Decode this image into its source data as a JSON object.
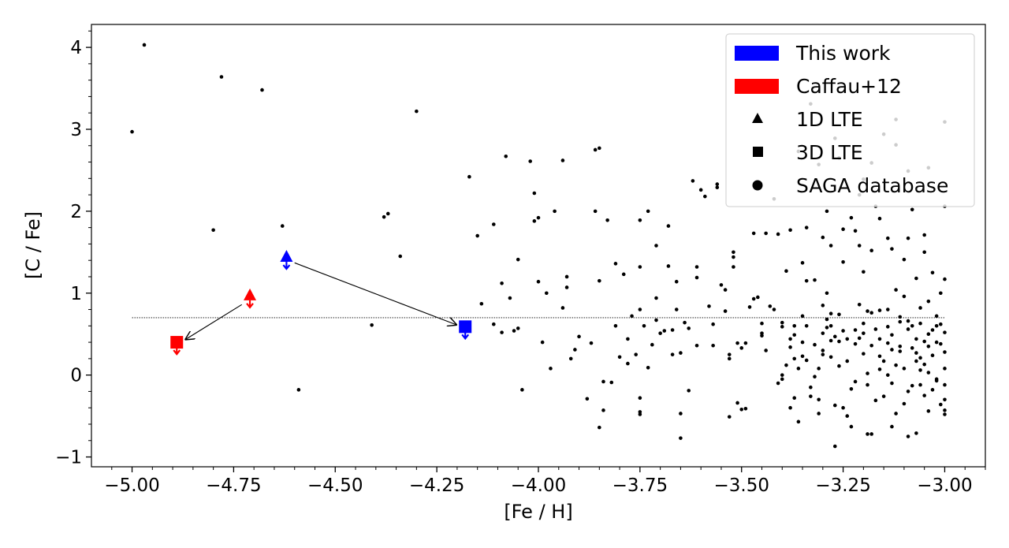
{
  "chart_data": {
    "type": "scatter",
    "xlabel": "[Fe / H]",
    "ylabel": "[C / Fe]",
    "xlim": [
      -5.1,
      -2.9
    ],
    "ylim": [
      -1.12,
      4.28
    ],
    "xticks": [
      -5.0,
      -4.75,
      -4.5,
      -4.25,
      -4.0,
      -3.75,
      -3.5,
      -3.25,
      -3.0
    ],
    "xtick_labels": [
      "−5.00",
      "−4.75",
      "−4.50",
      "−4.25",
      "−4.00",
      "−3.75",
      "−3.50",
      "−3.25",
      "−3.00"
    ],
    "yticks": [
      -1,
      0,
      1,
      2,
      3,
      4
    ],
    "ytick_labels": [
      "−1",
      "0",
      "1",
      "2",
      "3",
      "4"
    ],
    "grid": false,
    "reference_line": {
      "y": 0.7,
      "x_range": [
        -5.0,
        -3.0
      ],
      "style": "dotted"
    },
    "legend": {
      "placement": "top-right",
      "entries": [
        {
          "label": "This work",
          "marker": "patch",
          "color": "#0000ff"
        },
        {
          "label": "Caffau+12",
          "marker": "patch",
          "color": "#ff0000"
        },
        {
          "label": "1D LTE",
          "marker": "triangle",
          "color": "#000000"
        },
        {
          "label": "3D LTE",
          "marker": "square",
          "color": "#000000"
        },
        {
          "label": "SAGA database",
          "marker": "circle",
          "color": "#000000"
        }
      ]
    },
    "highlighted": [
      {
        "series": "This work",
        "method": "1D LTE",
        "x": -4.62,
        "y": 1.44,
        "color": "#0000ff",
        "upper_limit": true
      },
      {
        "series": "This work",
        "method": "3D LTE",
        "x": -4.18,
        "y": 0.59,
        "color": "#0000ff",
        "upper_limit": true
      },
      {
        "series": "Caffau+12",
        "method": "1D LTE",
        "x": -4.71,
        "y": 0.97,
        "color": "#ff0000",
        "upper_limit": true
      },
      {
        "series": "Caffau+12",
        "method": "3D LTE",
        "x": -4.89,
        "y": 0.4,
        "color": "#ff0000",
        "upper_limit": true
      }
    ],
    "arrows": [
      {
        "from": [
          -4.6,
          1.37
        ],
        "to": [
          -4.2,
          0.61
        ]
      },
      {
        "from": [
          -4.73,
          0.86
        ],
        "to": [
          -4.87,
          0.43
        ]
      }
    ],
    "saga_points": [
      [
        -5.0,
        2.97
      ],
      [
        -4.97,
        4.03
      ],
      [
        -4.78,
        3.64
      ],
      [
        -4.68,
        3.48
      ],
      [
        -4.3,
        3.22
      ],
      [
        -4.8,
        1.77
      ],
      [
        -4.63,
        1.82
      ],
      [
        -4.38,
        1.93
      ],
      [
        -4.37,
        1.97
      ],
      [
        -4.34,
        1.45
      ],
      [
        -4.41,
        0.61
      ],
      [
        -4.59,
        -0.18
      ],
      [
        -4.17,
        2.42
      ],
      [
        -4.15,
        1.7
      ],
      [
        -4.14,
        0.87
      ],
      [
        -4.11,
        0.62
      ],
      [
        -4.11,
        1.84
      ],
      [
        -4.09,
        1.12
      ],
      [
        -4.09,
        0.52
      ],
      [
        -4.08,
        2.67
      ],
      [
        -4.07,
        0.94
      ],
      [
        -4.06,
        0.54
      ],
      [
        -4.05,
        1.41
      ],
      [
        -4.05,
        0.57
      ],
      [
        -4.04,
        -0.18
      ],
      [
        -4.02,
        2.61
      ],
      [
        -4.01,
        2.22
      ],
      [
        -4.01,
        1.88
      ],
      [
        -4.0,
        1.92
      ],
      [
        -4.0,
        1.14
      ],
      [
        -3.99,
        0.4
      ],
      [
        -3.98,
        1.0
      ],
      [
        -3.97,
        0.08
      ],
      [
        -3.96,
        2.0
      ],
      [
        -3.94,
        2.62
      ],
      [
        -3.94,
        0.82
      ],
      [
        -3.93,
        1.2
      ],
      [
        -3.93,
        1.07
      ],
      [
        -3.92,
        0.2
      ],
      [
        -3.91,
        0.31
      ],
      [
        -3.9,
        0.47
      ],
      [
        -3.88,
        -0.29
      ],
      [
        -3.87,
        0.39
      ],
      [
        -3.86,
        2.75
      ],
      [
        -3.86,
        2.0
      ],
      [
        -3.85,
        2.77
      ],
      [
        -3.85,
        1.15
      ],
      [
        -3.85,
        -0.64
      ],
      [
        -3.84,
        -0.08
      ],
      [
        -3.84,
        -0.43
      ],
      [
        -3.83,
        1.89
      ],
      [
        -3.82,
        -0.09
      ],
      [
        -3.81,
        1.36
      ],
      [
        -3.81,
        0.6
      ],
      [
        -3.8,
        0.22
      ],
      [
        -3.79,
        1.23
      ],
      [
        -3.78,
        0.44
      ],
      [
        -3.78,
        0.14
      ],
      [
        -3.77,
        0.72
      ],
      [
        -3.76,
        0.25
      ],
      [
        -3.75,
        1.89
      ],
      [
        -3.75,
        1.32
      ],
      [
        -3.75,
        0.8
      ],
      [
        -3.75,
        -0.28
      ],
      [
        -3.75,
        -0.45
      ],
      [
        -3.75,
        -0.48
      ],
      [
        -3.74,
        0.6
      ],
      [
        -3.73,
        2.0
      ],
      [
        -3.73,
        0.09
      ],
      [
        -3.72,
        0.37
      ],
      [
        -3.71,
        1.58
      ],
      [
        -3.71,
        0.94
      ],
      [
        -3.71,
        0.67
      ],
      [
        -3.7,
        0.51
      ],
      [
        -3.69,
        0.54
      ],
      [
        -3.68,
        1.82
      ],
      [
        -3.68,
        1.33
      ],
      [
        -3.67,
        0.55
      ],
      [
        -3.67,
        0.25
      ],
      [
        -3.66,
        1.14
      ],
      [
        -3.66,
        0.8
      ],
      [
        -3.65,
        0.27
      ],
      [
        -3.65,
        -0.47
      ],
      [
        -3.65,
        -0.77
      ],
      [
        -3.64,
        0.64
      ],
      [
        -3.63,
        0.57
      ],
      [
        -3.63,
        -0.19
      ],
      [
        -3.62,
        2.37
      ],
      [
        -3.61,
        1.32
      ],
      [
        -3.61,
        1.19
      ],
      [
        -3.61,
        0.36
      ],
      [
        -3.6,
        2.26
      ],
      [
        -3.59,
        2.18
      ],
      [
        -3.58,
        0.84
      ],
      [
        -3.57,
        0.62
      ],
      [
        -3.57,
        0.36
      ],
      [
        -3.56,
        2.33
      ],
      [
        -3.56,
        2.29
      ],
      [
        -3.55,
        1.1
      ],
      [
        -3.54,
        1.04
      ],
      [
        -3.54,
        0.78
      ],
      [
        -3.53,
        0.25
      ],
      [
        -3.53,
        0.2
      ],
      [
        -3.53,
        -0.51
      ],
      [
        -3.52,
        1.5
      ],
      [
        -3.52,
        1.44
      ],
      [
        -3.52,
        1.32
      ],
      [
        -3.51,
        0.39
      ],
      [
        -3.51,
        -0.34
      ],
      [
        -3.5,
        0.33
      ],
      [
        -3.5,
        -0.42
      ],
      [
        -3.49,
        0.39
      ],
      [
        -3.49,
        -0.41
      ],
      [
        -3.48,
        0.83
      ],
      [
        -3.47,
        1.73
      ],
      [
        -3.47,
        0.93
      ],
      [
        -3.46,
        0.95
      ],
      [
        -3.45,
        0.51
      ],
      [
        -3.44,
        1.73
      ],
      [
        -3.43,
        0.84
      ],
      [
        -3.42,
        0.8
      ],
      [
        -3.41,
        1.72
      ],
      [
        -3.4,
        0.64
      ],
      [
        -3.4,
        0.59
      ],
      [
        -3.4,
        0.0
      ],
      [
        -3.39,
        1.27
      ],
      [
        -3.38,
        0.44
      ],
      [
        -3.38,
        0.34
      ],
      [
        -3.37,
        0.49
      ],
      [
        -3.37,
        0.2
      ],
      [
        -3.36,
        0.08
      ],
      [
        -3.36,
        -0.57
      ],
      [
        -3.35,
        1.37
      ],
      [
        -3.35,
        0.72
      ],
      [
        -3.34,
        0.18
      ],
      [
        -3.33,
        -0.26
      ],
      [
        -3.32,
        1.16
      ],
      [
        -3.32,
        0.37
      ],
      [
        -3.31,
        0.08
      ],
      [
        -3.31,
        -0.3
      ],
      [
        -3.3,
        0.51
      ],
      [
        -3.3,
        0.3
      ],
      [
        -3.29,
        1.0
      ],
      [
        -3.29,
        0.68
      ],
      [
        -3.28,
        0.75
      ],
      [
        -3.28,
        0.42
      ],
      [
        -3.28,
        0.22
      ],
      [
        -3.27,
        -0.37
      ],
      [
        -3.27,
        -0.87
      ],
      [
        -3.26,
        0.74
      ],
      [
        -3.26,
        0.11
      ],
      [
        -3.25,
        1.78
      ],
      [
        -3.25,
        1.38
      ],
      [
        -3.25,
        0.54
      ],
      [
        -3.24,
        0.17
      ],
      [
        -3.24,
        -0.5
      ],
      [
        -3.23,
        -0.63
      ],
      [
        -3.22,
        1.76
      ],
      [
        -3.22,
        0.55
      ],
      [
        -3.22,
        -0.08
      ],
      [
        -3.21,
        1.58
      ],
      [
        -3.21,
        0.86
      ],
      [
        -3.2,
        1.26
      ],
      [
        -3.2,
        0.63
      ],
      [
        -3.2,
        0.26
      ],
      [
        -3.19,
        0.02
      ],
      [
        -3.19,
        -0.12
      ],
      [
        -3.18,
        1.52
      ],
      [
        -3.18,
        0.76
      ],
      [
        -3.18,
        0.36
      ],
      [
        -3.17,
        0.56
      ],
      [
        -3.17,
        -0.31
      ],
      [
        -3.16,
        1.91
      ],
      [
        -3.16,
        0.79
      ],
      [
        -3.16,
        0.44
      ],
      [
        -3.15,
        0.17
      ],
      [
        -3.15,
        -0.26
      ],
      [
        -3.14,
        1.67
      ],
      [
        -3.14,
        0.59
      ],
      [
        -3.14,
        0.0
      ],
      [
        -3.13,
        1.54
      ],
      [
        -3.13,
        0.49
      ],
      [
        -3.13,
        0.31
      ],
      [
        -3.12,
        1.04
      ],
      [
        -3.12,
        -0.47
      ],
      [
        -3.11,
        0.71
      ],
      [
        -3.11,
        0.35
      ],
      [
        -3.1,
        1.41
      ],
      [
        -3.1,
        0.96
      ],
      [
        -3.1,
        0.08
      ],
      [
        -3.09,
        1.67
      ],
      [
        -3.09,
        0.66
      ],
      [
        -3.09,
        0.56
      ],
      [
        -3.08,
        0.33
      ],
      [
        -3.08,
        -0.13
      ],
      [
        -3.07,
        1.18
      ],
      [
        -3.07,
        0.44
      ],
      [
        -3.07,
        -0.71
      ],
      [
        -3.06,
        0.82
      ],
      [
        -3.06,
        0.63
      ],
      [
        -3.06,
        0.21
      ],
      [
        -3.05,
        1.71
      ],
      [
        -3.05,
        1.5
      ],
      [
        -3.05,
        0.41
      ],
      [
        -3.05,
        -0.25
      ],
      [
        -3.04,
        0.9
      ],
      [
        -3.04,
        0.5
      ],
      [
        -3.04,
        0.03
      ],
      [
        -3.03,
        1.25
      ],
      [
        -3.03,
        0.24
      ],
      [
        -3.03,
        -0.18
      ],
      [
        -3.02,
        0.72
      ],
      [
        -3.02,
        0.4
      ],
      [
        -3.02,
        -0.07
      ],
      [
        -3.01,
        1.0
      ],
      [
        -3.01,
        0.62
      ],
      [
        -3.01,
        0.38
      ],
      [
        -3.01,
        -0.36
      ],
      [
        -3.0,
        1.17
      ],
      [
        -3.0,
        0.52
      ],
      [
        -3.0,
        0.28
      ],
      [
        -3.0,
        0.08
      ],
      [
        -3.0,
        -0.12
      ],
      [
        -3.0,
        -0.3
      ],
      [
        -3.0,
        -0.43
      ],
      [
        -3.0,
        -0.48
      ],
      [
        -3.23,
        1.92
      ],
      [
        -3.29,
        2.0
      ],
      [
        -3.31,
        2.57
      ],
      [
        -3.42,
        2.15
      ],
      [
        -3.46,
        2.31
      ],
      [
        -3.26,
        2.65
      ],
      [
        -3.36,
        2.73
      ],
      [
        -3.33,
        3.31
      ],
      [
        -3.27,
        2.89
      ],
      [
        -3.2,
        2.39
      ],
      [
        -3.17,
        2.06
      ],
      [
        -3.12,
        3.12
      ],
      [
        -3.09,
        2.49
      ],
      [
        -3.08,
        2.02
      ],
      [
        -3.15,
        2.94
      ],
      [
        -3.12,
        2.81
      ],
      [
        -3.04,
        2.53
      ],
      [
        -3.0,
        3.09
      ],
      [
        -3.0,
        2.06
      ],
      [
        -3.21,
        2.2
      ],
      [
        -3.18,
        2.59
      ],
      [
        -3.38,
        1.77
      ],
      [
        -3.34,
        1.8
      ],
      [
        -3.3,
        1.68
      ],
      [
        -3.28,
        1.58
      ],
      [
        -3.34,
        1.15
      ],
      [
        -3.3,
        0.85
      ],
      [
        -3.34,
        0.6
      ],
      [
        -3.28,
        0.6
      ],
      [
        -3.37,
        0.6
      ],
      [
        -3.22,
        0.38
      ],
      [
        -3.21,
        0.45
      ],
      [
        -3.14,
        0.8
      ],
      [
        -3.11,
        0.65
      ],
      [
        -3.19,
        0.78
      ],
      [
        -3.16,
        0.07
      ],
      [
        -3.09,
        -0.2
      ],
      [
        -3.07,
        0.17
      ],
      [
        -3.05,
        0.13
      ],
      [
        -3.13,
        -0.1
      ],
      [
        -3.1,
        -0.35
      ],
      [
        -3.12,
        0.12
      ],
      [
        -3.06,
        -0.12
      ],
      [
        -3.04,
        0.35
      ],
      [
        -3.02,
        -0.05
      ],
      [
        -3.04,
        -0.44
      ],
      [
        -3.13,
        -0.63
      ],
      [
        -3.19,
        -0.72
      ],
      [
        -3.18,
        -0.72
      ],
      [
        -3.09,
        -0.75
      ],
      [
        -3.25,
        -0.4
      ],
      [
        -3.23,
        -0.17
      ],
      [
        -3.27,
        0.47
      ],
      [
        -3.26,
        0.41
      ],
      [
        -3.24,
        0.44
      ],
      [
        -3.2,
        0.51
      ],
      [
        -3.16,
        0.23
      ],
      [
        -3.14,
        0.39
      ],
      [
        -3.11,
        0.29
      ],
      [
        -3.02,
        0.6
      ],
      [
        -3.03,
        0.55
      ],
      [
        -3.07,
        0.27
      ],
      [
        -3.06,
        0.06
      ],
      [
        -3.08,
        0.6
      ],
      [
        -3.35,
        0.23
      ],
      [
        -3.35,
        0.4
      ],
      [
        -3.39,
        0.12
      ],
      [
        -3.37,
        -0.28
      ],
      [
        -3.38,
        -0.4
      ],
      [
        -3.4,
        -0.05
      ],
      [
        -3.41,
        -0.1
      ],
      [
        -3.44,
        0.3
      ],
      [
        -3.45,
        0.63
      ],
      [
        -3.45,
        0.48
      ],
      [
        -3.32,
        -0.02
      ],
      [
        -3.31,
        -0.47
      ],
      [
        -3.33,
        -0.15
      ],
      [
        -3.3,
        0.25
      ],
      [
        -3.29,
        0.58
      ]
    ]
  }
}
